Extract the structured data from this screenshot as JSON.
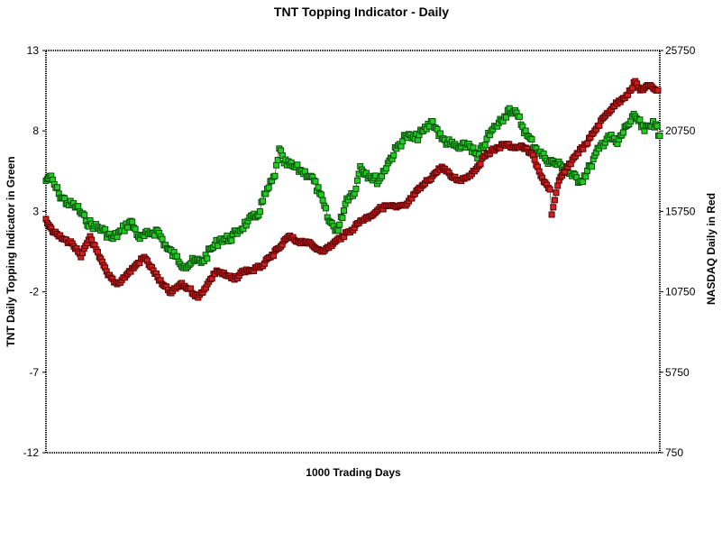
{
  "chart_data": {
    "type": "scatter",
    "title": "TNT Topping Indicator - Daily",
    "xlabel": "1000 Trading Days",
    "ylabel": "TNT Daily Topping Indicator in Green",
    "y2label": "NASDAQ Daily in Red",
    "xlim": [
      0,
      1000
    ],
    "ylim": [
      -12,
      13
    ],
    "y2lim": [
      750,
      25750
    ],
    "yticks": [
      "13",
      "8",
      "3",
      "-2",
      "-7",
      "-12"
    ],
    "y2ticks": [
      "25750",
      "20750",
      "15750",
      "10750",
      "5750",
      "750"
    ],
    "grid": false,
    "series": [
      {
        "name": "TNT Topping Indicator",
        "axis": "left",
        "color": "#22cc22",
        "x": [
          0,
          6,
          21,
          35,
          50,
          65,
          79,
          94,
          109,
          123,
          138,
          153,
          167,
          182,
          197,
          211,
          226,
          241,
          255,
          270,
          285,
          300,
          314,
          329,
          344,
          358,
          373,
          380,
          388,
          402,
          417,
          432,
          446,
          461,
          476,
          490,
          505,
          512,
          527,
          542,
          557,
          571,
          586,
          601,
          615,
          630,
          645,
          659,
          674,
          689,
          703,
          718,
          733,
          747,
          755,
          769,
          784,
          799,
          813,
          828,
          843,
          857,
          872,
          887,
          901,
          916,
          931,
          945,
          960,
          975,
          989,
          1000
        ],
        "y": [
          4.9,
          5.2,
          4.1,
          3.5,
          3.3,
          2.4,
          2.1,
          1.8,
          1.3,
          1.8,
          2.4,
          1.3,
          1.6,
          1.8,
          0.7,
          0.2,
          -0.4,
          -0.1,
          -0.1,
          0.7,
          1.3,
          1.3,
          1.8,
          2.4,
          2.7,
          4.1,
          5.2,
          6.9,
          6.0,
          5.8,
          5.5,
          5.2,
          4.1,
          2.4,
          1.8,
          3.8,
          4.4,
          5.8,
          5.2,
          4.9,
          6.0,
          6.9,
          7.7,
          7.5,
          8.0,
          8.6,
          7.5,
          7.2,
          6.9,
          7.2,
          6.3,
          7.5,
          8.3,
          8.9,
          9.4,
          8.9,
          7.7,
          6.9,
          6.3,
          6.0,
          5.8,
          5.2,
          4.9,
          5.8,
          6.9,
          7.7,
          7.2,
          8.3,
          8.9,
          8.0,
          8.6,
          7.7
        ]
      },
      {
        "name": "NASDAQ",
        "axis": "right",
        "color": "#cc2222",
        "x": [
          0,
          13,
          28,
          43,
          57,
          72,
          87,
          101,
          116,
          131,
          145,
          160,
          175,
          189,
          204,
          219,
          233,
          248,
          263,
          278,
          292,
          307,
          322,
          336,
          351,
          366,
          380,
          395,
          410,
          424,
          439,
          454,
          468,
          483,
          498,
          512,
          527,
          542,
          557,
          571,
          586,
          601,
          615,
          630,
          645,
          659,
          674,
          689,
          703,
          718,
          733,
          747,
          762,
          777,
          791,
          806,
          821,
          824,
          836,
          850,
          865,
          880,
          894,
          909,
          924,
          938,
          953,
          960,
          968,
          982,
          997
        ],
        "y": [
          15270,
          14430,
          14030,
          13750,
          12910,
          14200,
          12910,
          11790,
          11230,
          11790,
          12350,
          12910,
          12070,
          11230,
          10670,
          11230,
          10950,
          10390,
          11230,
          12070,
          11790,
          11510,
          12070,
          12070,
          12350,
          12910,
          13470,
          14200,
          13870,
          13870,
          13470,
          13310,
          13750,
          14200,
          14590,
          15160,
          15435,
          15880,
          16110,
          16000,
          16110,
          16840,
          17400,
          17960,
          18520,
          17960,
          17680,
          17960,
          18520,
          19360,
          19640,
          19920,
          19750,
          19750,
          19360,
          17960,
          17120,
          15550,
          17680,
          18520,
          19360,
          19920,
          20760,
          21600,
          22270,
          22720,
          23280,
          23840,
          23280,
          23560,
          23280
        ]
      }
    ]
  }
}
